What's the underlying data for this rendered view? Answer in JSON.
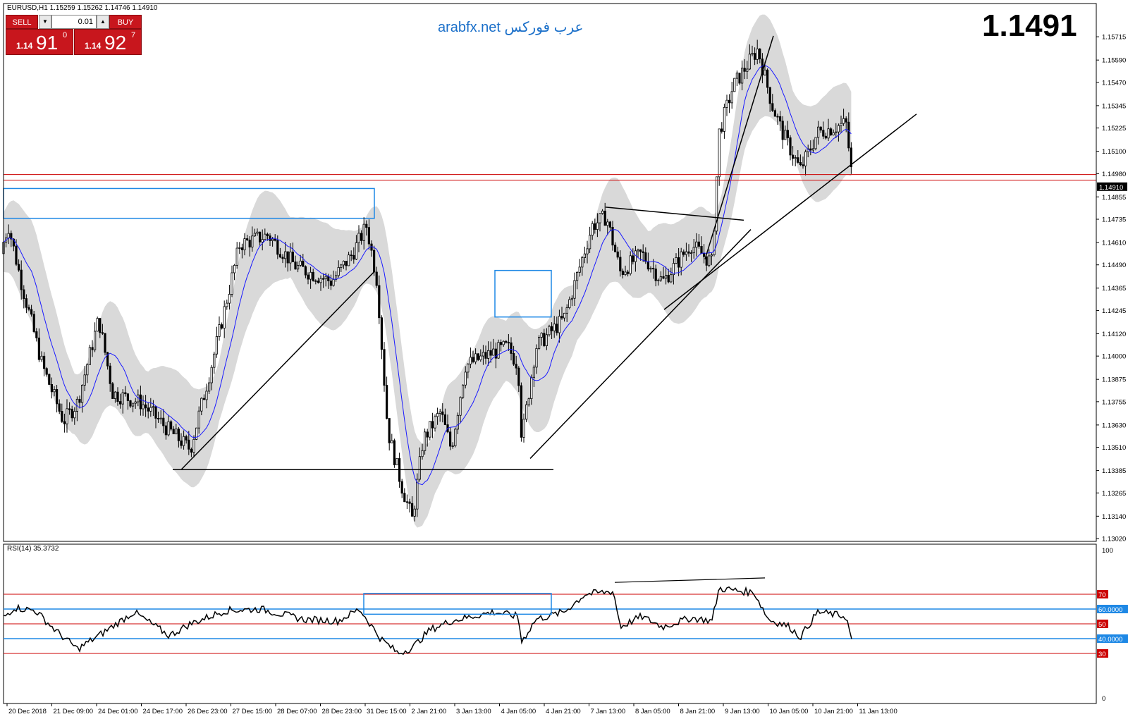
{
  "header": {
    "symbol_info": "EURUSD,H1  1.15259 1.15262 1.14746 1.14910",
    "site_brand": "arabfx.net عرب فوركس",
    "big_price": "1.1491"
  },
  "trade_panel": {
    "sell_label": "SELL",
    "buy_label": "BUY",
    "lot_value": "0.01",
    "dropdown_glyph": "▼",
    "up_glyph": "▲",
    "sell_price_small": "1.14",
    "sell_price_big": "91",
    "sell_price_sup": "0",
    "buy_price_small": "1.14",
    "buy_price_big": "92",
    "buy_price_sup": "7"
  },
  "colors": {
    "candle": "#000000",
    "ma_line": "#1a1aff",
    "envelope_fill": "#d9d9d9",
    "sr_line_red": "#cc0000",
    "box_blue": "#1e88e5",
    "trade_red": "#c8161d",
    "brand_blue": "#1a6fc9"
  },
  "chart_data": [
    {
      "type": "candlestick",
      "symbol": "EURUSD",
      "timeframe": "H1",
      "ylim": [
        1.1302,
        1.1578
      ],
      "y_ticks": [
        "1.15715",
        "1.15590",
        "1.15470",
        "1.15345",
        "1.15225",
        "1.15100",
        "1.14980",
        "1.14855",
        "1.14735",
        "1.14610",
        "1.14490",
        "1.14365",
        "1.14245",
        "1.14120",
        "1.14000",
        "1.13875",
        "1.13755",
        "1.13630",
        "1.13510",
        "1.13385",
        "1.13265",
        "1.13140",
        "1.13020"
      ],
      "current_price_label": "1.14910",
      "x_ticks": [
        "20 Dec 2018",
        "21 Dec 09:00",
        "24 Dec 01:00",
        "24 Dec 17:00",
        "26 Dec 23:00",
        "27 Dec 15:00",
        "28 Dec 07:00",
        "28 Dec 23:00",
        "31 Dec 15:00",
        "2 Jan 21:00",
        "3 Jan 13:00",
        "4 Jan 05:00",
        "4 Jan 21:00",
        "7 Jan 13:00",
        "8 Jan 05:00",
        "8 Jan 21:00",
        "9 Jan 13:00",
        "10 Jan 05:00",
        "10 Jan 21:00",
        "11 Jan 13:00"
      ],
      "anchors": [
        [
          0,
          1.1455
        ],
        [
          12,
          1.147
        ],
        [
          30,
          1.144
        ],
        [
          60,
          1.1395
        ],
        [
          90,
          1.1365
        ],
        [
          110,
          1.1375
        ],
        [
          140,
          1.142
        ],
        [
          160,
          1.138
        ],
        [
          200,
          1.1375
        ],
        [
          240,
          1.136
        ],
        [
          270,
          1.135
        ],
        [
          300,
          1.1395
        ],
        [
          340,
          1.146
        ],
        [
          380,
          1.1465
        ],
        [
          420,
          1.1448
        ],
        [
          470,
          1.144
        ],
        [
          500,
          1.1455
        ],
        [
          520,
          1.147
        ],
        [
          535,
          1.144
        ],
        [
          550,
          1.136
        ],
        [
          570,
          1.133
        ],
        [
          585,
          1.1312
        ],
        [
          600,
          1.1355
        ],
        [
          625,
          1.137
        ],
        [
          640,
          1.135
        ],
        [
          660,
          1.1395
        ],
        [
          700,
          1.1402
        ],
        [
          720,
          1.1405
        ],
        [
          735,
          1.1395
        ],
        [
          740,
          1.1355
        ],
        [
          760,
          1.1405
        ],
        [
          800,
          1.142
        ],
        [
          840,
          1.147
        ],
        [
          860,
          1.1475
        ],
        [
          880,
          1.1445
        ],
        [
          910,
          1.1455
        ],
        [
          940,
          1.144
        ],
        [
          980,
          1.146
        ],
        [
          1010,
          1.145
        ],
        [
          1020,
          1.152
        ],
        [
          1040,
          1.1545
        ],
        [
          1075,
          1.1565
        ],
        [
          1095,
          1.1535
        ],
        [
          1110,
          1.152
        ],
        [
          1135,
          1.15
        ],
        [
          1160,
          1.152
        ],
        [
          1200,
          1.1525
        ],
        [
          1210,
          1.1491
        ]
      ],
      "annotations": {
        "resistance_levels": [
          1.14975,
          1.14945
        ],
        "support_level": 1.1339
      }
    },
    {
      "type": "line",
      "indicator": "RSI(14) 35.3732",
      "ylim": [
        0,
        100
      ],
      "y_ticks_left": [
        "100",
        "0"
      ],
      "levels": [
        "70",
        "60.0000",
        "50",
        "40.0000",
        "30"
      ],
      "anchors": [
        [
          0,
          52
        ],
        [
          20,
          61
        ],
        [
          50,
          59
        ],
        [
          80,
          45
        ],
        [
          110,
          33
        ],
        [
          140,
          42
        ],
        [
          190,
          58
        ],
        [
          240,
          42
        ],
        [
          270,
          50
        ],
        [
          320,
          59
        ],
        [
          370,
          60
        ],
        [
          430,
          53
        ],
        [
          480,
          52
        ],
        [
          510,
          60
        ],
        [
          540,
          40
        ],
        [
          565,
          30
        ],
        [
          585,
          34
        ],
        [
          610,
          46
        ],
        [
          640,
          52
        ],
        [
          700,
          58
        ],
        [
          735,
          55
        ],
        [
          740,
          38
        ],
        [
          760,
          53
        ],
        [
          800,
          58
        ],
        [
          830,
          70
        ],
        [
          870,
          72
        ],
        [
          880,
          48
        ],
        [
          910,
          55
        ],
        [
          940,
          48
        ],
        [
          980,
          54
        ],
        [
          1010,
          52
        ],
        [
          1020,
          74
        ],
        [
          1070,
          71
        ],
        [
          1090,
          53
        ],
        [
          1120,
          48
        ],
        [
          1135,
          41
        ],
        [
          1160,
          58
        ],
        [
          1200,
          55
        ],
        [
          1210,
          35.37
        ]
      ]
    }
  ]
}
